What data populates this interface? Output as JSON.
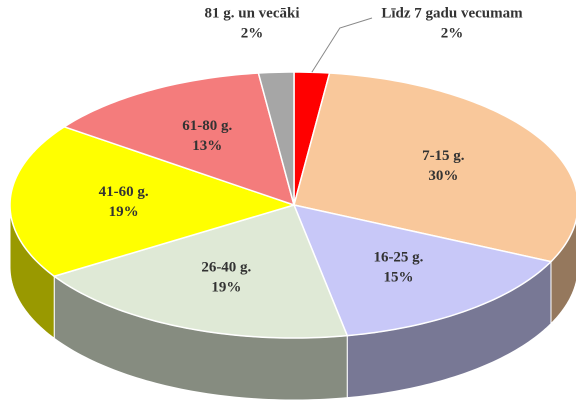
{
  "chart_data": {
    "type": "pie",
    "categories": [
      "Līdz 7 gadu vecumam",
      "7-15 g.",
      "16-25 g.",
      "26-40 g.",
      "41-60 g.",
      "61-80 g.",
      "81 g. un vecāki"
    ],
    "values": [
      2,
      30,
      15,
      19,
      19,
      13,
      2
    ],
    "value_labels": [
      "2%",
      "30%",
      "15%",
      "19%",
      "19%",
      "13%",
      "2%"
    ],
    "colors": [
      "#ff0000",
      "#f9c89b",
      "#c8c8f8",
      "#dfe9d6",
      "#ffff00",
      "#f47c7c",
      "#a6a6a6"
    ]
  }
}
